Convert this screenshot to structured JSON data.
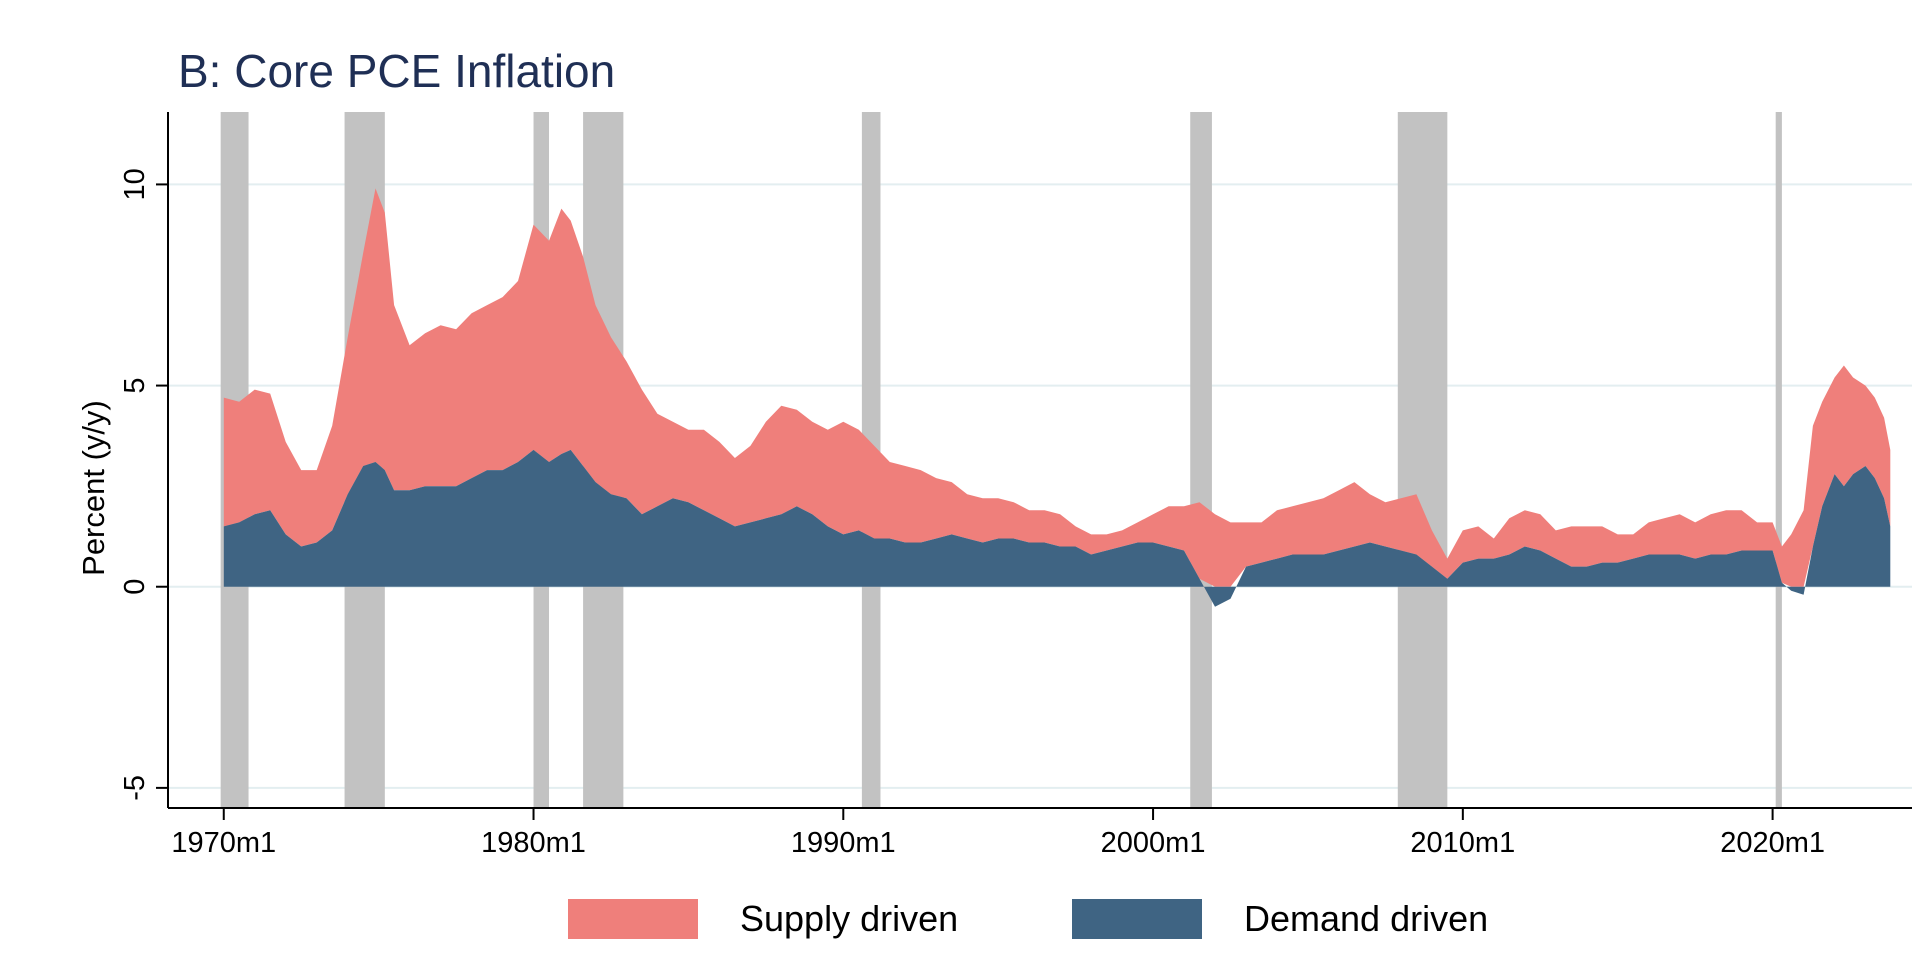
{
  "chart_data": {
    "type": "area",
    "title": "B: Core PCE Inflation",
    "xlabel": "",
    "ylabel": "Percent (y/y)",
    "x_ticks": [
      "1970m1",
      "1980m1",
      "1990m1",
      "2000m1",
      "2010m1",
      "2020m1"
    ],
    "y_ticks": [
      "-5",
      "0",
      "5",
      "10"
    ],
    "ylim": [
      -5.5,
      11.8
    ],
    "xlim": [
      1968.2,
      2024.5
    ],
    "grid": "horizontal",
    "legend_position": "bottom",
    "recessions": [
      [
        1969.9,
        1970.8
      ],
      [
        1973.9,
        1975.2
      ],
      [
        1980.0,
        1980.5
      ],
      [
        1981.6,
        1982.9
      ],
      [
        1990.6,
        1991.2
      ],
      [
        2001.2,
        2001.9
      ],
      [
        2007.9,
        2009.5
      ],
      [
        2020.1,
        2020.3
      ]
    ],
    "x": [
      1970.0,
      1970.5,
      1971.0,
      1971.5,
      1972.0,
      1972.5,
      1973.0,
      1973.5,
      1974.0,
      1974.5,
      1974.9,
      1975.2,
      1975.5,
      1976.0,
      1976.5,
      1977.0,
      1977.5,
      1978.0,
      1978.5,
      1979.0,
      1979.5,
      1980.0,
      1980.5,
      1980.9,
      1981.2,
      1981.6,
      1982.0,
      1982.5,
      1983.0,
      1983.5,
      1984.0,
      1984.5,
      1985.0,
      1985.5,
      1986.0,
      1986.5,
      1987.0,
      1987.5,
      1988.0,
      1988.5,
      1989.0,
      1989.5,
      1990.0,
      1990.5,
      1991.0,
      1991.5,
      1992.0,
      1992.5,
      1993.0,
      1993.5,
      1994.0,
      1994.5,
      1995.0,
      1995.5,
      1996.0,
      1996.5,
      1997.0,
      1997.5,
      1998.0,
      1998.5,
      1999.0,
      1999.5,
      2000.0,
      2000.5,
      2001.0,
      2001.5,
      2002.0,
      2002.5,
      2003.0,
      2003.5,
      2004.0,
      2004.5,
      2005.0,
      2005.5,
      2006.0,
      2006.5,
      2007.0,
      2007.5,
      2008.0,
      2008.5,
      2009.0,
      2009.5,
      2010.0,
      2010.5,
      2011.0,
      2011.5,
      2012.0,
      2012.5,
      2013.0,
      2013.5,
      2014.0,
      2014.5,
      2015.0,
      2015.5,
      2016.0,
      2016.5,
      2017.0,
      2017.5,
      2018.0,
      2018.5,
      2019.0,
      2019.5,
      2020.0,
      2020.3,
      2020.6,
      2021.0,
      2021.3,
      2021.6,
      2022.0,
      2022.3,
      2022.6,
      2023.0,
      2023.3,
      2023.6,
      2023.8
    ],
    "series": [
      {
        "name": "Supply driven",
        "color": "#ef7f7b",
        "values": [
          4.7,
          4.6,
          4.9,
          4.8,
          3.6,
          2.9,
          2.9,
          4.0,
          6.2,
          8.3,
          9.9,
          9.3,
          7.0,
          6.0,
          6.3,
          6.5,
          6.4,
          6.8,
          7.0,
          7.2,
          7.6,
          9.0,
          8.6,
          9.4,
          9.1,
          8.2,
          7.0,
          6.2,
          5.6,
          4.9,
          4.3,
          4.1,
          3.9,
          3.9,
          3.6,
          3.2,
          3.5,
          4.1,
          4.5,
          4.4,
          4.1,
          3.9,
          4.1,
          3.9,
          3.5,
          3.1,
          3.0,
          2.9,
          2.7,
          2.6,
          2.3,
          2.2,
          2.2,
          2.1,
          1.9,
          1.9,
          1.8,
          1.5,
          1.3,
          1.3,
          1.4,
          1.6,
          1.8,
          2.0,
          2.0,
          2.1,
          1.8,
          1.6,
          1.6,
          1.6,
          1.9,
          2.0,
          2.1,
          2.2,
          2.4,
          2.6,
          2.3,
          2.1,
          2.2,
          2.3,
          1.4,
          0.7,
          1.4,
          1.5,
          1.2,
          1.7,
          1.9,
          1.8,
          1.4,
          1.5,
          1.5,
          1.5,
          1.3,
          1.3,
          1.6,
          1.7,
          1.8,
          1.6,
          1.8,
          1.9,
          1.9,
          1.6,
          1.6,
          1.0,
          1.3,
          1.9,
          4.0,
          4.6,
          5.2,
          5.5,
          5.2,
          5.0,
          4.7,
          4.2,
          3.4
        ]
      },
      {
        "name": "Demand driven",
        "color": "#3f6483",
        "values": [
          1.5,
          1.6,
          1.8,
          1.9,
          1.3,
          1.0,
          1.1,
          1.4,
          2.3,
          3.0,
          3.1,
          2.9,
          2.4,
          2.4,
          2.5,
          2.5,
          2.5,
          2.7,
          2.9,
          2.9,
          3.1,
          3.4,
          3.1,
          3.3,
          3.4,
          3.0,
          2.6,
          2.3,
          2.2,
          1.8,
          2.0,
          2.2,
          2.1,
          1.9,
          1.7,
          1.5,
          1.6,
          1.7,
          1.8,
          2.0,
          1.8,
          1.5,
          1.3,
          1.4,
          1.2,
          1.2,
          1.1,
          1.1,
          1.2,
          1.3,
          1.2,
          1.1,
          1.2,
          1.2,
          1.1,
          1.1,
          1.0,
          1.0,
          0.8,
          0.9,
          1.0,
          1.1,
          1.1,
          1.0,
          0.9,
          0.2,
          -0.5,
          -0.3,
          0.5,
          0.6,
          0.7,
          0.8,
          0.8,
          0.8,
          0.9,
          1.0,
          1.1,
          1.0,
          0.9,
          0.8,
          0.5,
          0.2,
          0.6,
          0.7,
          0.7,
          0.8,
          1.0,
          0.9,
          0.7,
          0.5,
          0.5,
          0.6,
          0.6,
          0.7,
          0.8,
          0.8,
          0.8,
          0.7,
          0.8,
          0.8,
          0.9,
          0.9,
          0.9,
          0.1,
          -0.1,
          -0.2,
          1.0,
          2.0,
          2.8,
          2.5,
          2.8,
          3.0,
          2.7,
          2.2,
          1.5
        ]
      }
    ]
  }
}
